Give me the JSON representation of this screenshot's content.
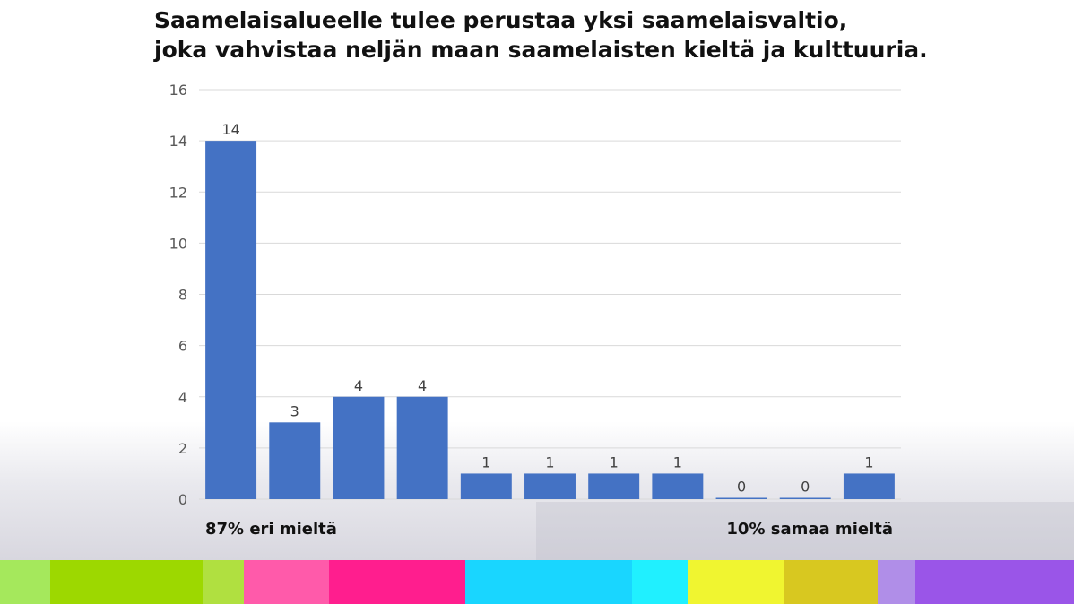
{
  "title_lines": [
    "Saamelaisalueelle tulee perustaa yksi saamelaisvaltio,",
    "joka vahvistaa neljän maan saamelaisten kieltä ja kulttuuria."
  ],
  "summary": {
    "disagree": "87% eri mieltä",
    "agree": "10% samaa mieltä"
  },
  "colors": {
    "bar": "#4472c4",
    "grid": "#d9d9d9",
    "tick_text": "#595959",
    "label_text": "#404040"
  },
  "stripe_colors": [
    "#a5e85c",
    "#9dd800",
    "#b0e040",
    "#ff5aaa",
    "#ff1e8e",
    "#19d6ff",
    "#20f0ff",
    "#f0f530",
    "#d8c820",
    "#b08ee8",
    "#9a55e8"
  ],
  "chart_data": {
    "type": "bar",
    "title": "Saamelaisalueelle tulee perustaa yksi saamelaisvaltio, joka vahvistaa neljän maan saamelaisten kieltä ja kulttuuria.",
    "values": [
      14,
      3,
      4,
      4,
      1,
      1,
      1,
      1,
      0,
      0,
      1
    ],
    "data_labels": [
      "14",
      "3",
      "4",
      "4",
      "1",
      "1",
      "1",
      "1",
      "0",
      "0",
      "1"
    ],
    "y_ticks": [
      "0",
      "2",
      "4",
      "6",
      "8",
      "10",
      "12",
      "14",
      "16"
    ],
    "ylim": [
      0,
      16
    ],
    "grid": true
  }
}
